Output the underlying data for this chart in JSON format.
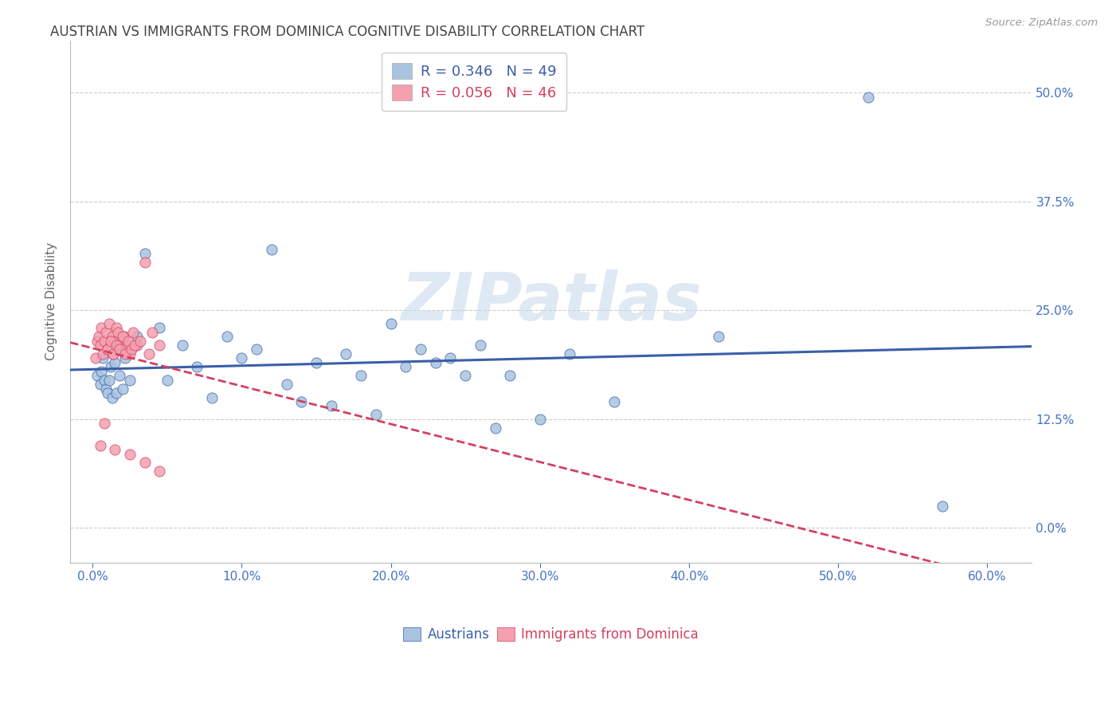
{
  "title": "AUSTRIAN VS IMMIGRANTS FROM DOMINICA COGNITIVE DISABILITY CORRELATION CHART",
  "source": "Source: ZipAtlas.com",
  "ylabel": "Cognitive Disability",
  "xlim": [
    -1.5,
    63
  ],
  "ylim": [
    -4,
    56
  ],
  "legend_R1": "R = 0.346",
  "legend_N1": "N = 49",
  "legend_R2": "R = 0.056",
  "legend_N2": "N = 46",
  "austrians_x": [
    0.3,
    0.5,
    0.6,
    0.7,
    0.8,
    0.9,
    1.0,
    1.1,
    1.2,
    1.3,
    1.5,
    1.6,
    1.8,
    2.0,
    2.2,
    2.5,
    3.0,
    3.5,
    4.5,
    5.0,
    6.0,
    7.0,
    8.0,
    9.0,
    10.0,
    11.0,
    12.0,
    13.0,
    14.0,
    15.0,
    16.0,
    17.0,
    18.0,
    19.0,
    20.0,
    21.0,
    22.0,
    23.0,
    24.0,
    25.0,
    26.0,
    27.0,
    28.0,
    30.0,
    32.0,
    35.0,
    42.0,
    52.0,
    57.0
  ],
  "austrians_y": [
    17.5,
    16.5,
    18.0,
    19.5,
    17.0,
    16.0,
    15.5,
    17.0,
    18.5,
    15.0,
    19.0,
    15.5,
    17.5,
    16.0,
    19.5,
    17.0,
    22.0,
    31.5,
    23.0,
    17.0,
    21.0,
    18.5,
    15.0,
    22.0,
    19.5,
    20.5,
    32.0,
    16.5,
    14.5,
    19.0,
    14.0,
    20.0,
    17.5,
    13.0,
    23.5,
    18.5,
    20.5,
    19.0,
    19.5,
    17.5,
    21.0,
    11.5,
    17.5,
    12.5,
    20.0,
    14.5,
    22.0,
    49.5,
    2.5
  ],
  "dominica_x": [
    0.2,
    0.3,
    0.4,
    0.5,
    0.6,
    0.7,
    0.8,
    0.9,
    1.0,
    1.1,
    1.2,
    1.3,
    1.4,
    1.5,
    1.6,
    1.7,
    1.8,
    1.9,
    2.0,
    2.1,
    2.2,
    2.3,
    2.5,
    2.7,
    3.0,
    3.5,
    4.0,
    4.5,
    1.0,
    1.2,
    1.4,
    1.6,
    1.8,
    2.0,
    2.2,
    2.4,
    2.6,
    2.8,
    3.2,
    3.8,
    0.5,
    0.8,
    1.5,
    2.5,
    3.5,
    4.5
  ],
  "dominica_y": [
    19.5,
    21.5,
    22.0,
    21.0,
    23.0,
    20.0,
    21.5,
    22.5,
    20.5,
    23.5,
    21.0,
    22.0,
    20.0,
    21.5,
    23.0,
    22.5,
    21.0,
    20.5,
    21.5,
    22.0,
    20.5,
    21.0,
    20.0,
    22.5,
    21.0,
    30.5,
    22.5,
    21.0,
    20.5,
    21.5,
    20.0,
    21.0,
    20.5,
    22.0,
    20.0,
    21.5,
    20.5,
    21.0,
    21.5,
    20.0,
    9.5,
    12.0,
    9.0,
    8.5,
    7.5,
    6.5
  ],
  "austrian_color": "#a8c4e0",
  "dominica_color": "#f4a0b0",
  "line_austrian_color": "#3a5fa8",
  "line_dominica_color": "#d44060",
  "background_color": "#ffffff",
  "grid_color": "#cccccc",
  "title_color": "#444444",
  "tick_label_color": "#4472c4",
  "ylabel_color": "#666666",
  "watermark": "ZIPatlas",
  "watermark_color": "#c5d8ea",
  "source_color": "#999999"
}
